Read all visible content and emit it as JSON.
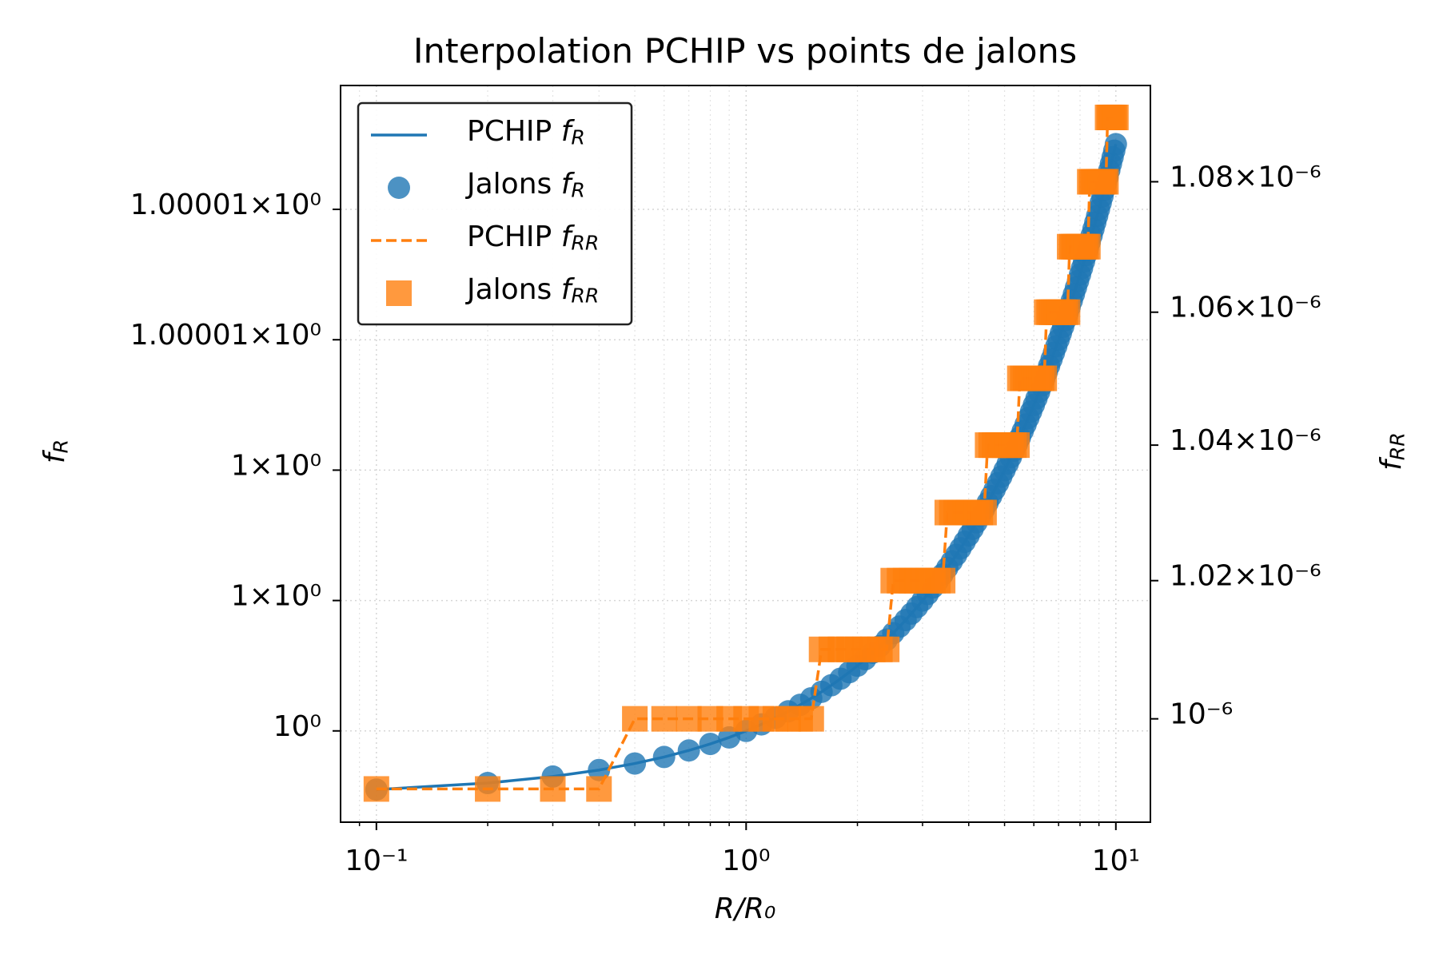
{
  "chart_data": {
    "type": "line",
    "title": "Interpolation PCHIP vs points de jalons",
    "xlabel": "R/R₀",
    "ylabel": "fR",
    "y2label": "fRR",
    "ycolor": "#1f77b4",
    "y2color": "#ff7f0e",
    "xscale": "log",
    "yscale": "log",
    "y2scale": "log",
    "grid": true,
    "legend": "upper left",
    "xlim": [
      0.08,
      12.4
    ],
    "ylim": [
      0.9999986,
      1.0000099
    ],
    "y2lim": [
      9.853e-07,
      1.095e-06
    ],
    "xticks": [
      {
        "value": 0.1,
        "label": "10⁻¹"
      },
      {
        "value": 1,
        "label": "10⁰"
      },
      {
        "value": 10,
        "label": "10¹"
      }
    ],
    "xminorticks": [
      0.09,
      0.2,
      0.3,
      0.4,
      0.5,
      0.6,
      0.7,
      0.8,
      0.9,
      2,
      3,
      4,
      5,
      6,
      7,
      8,
      9
    ],
    "yticks": [
      {
        "value": 1,
        "label": "10⁰"
      },
      {
        "value": 1.000002,
        "label": "1×10⁰"
      },
      {
        "value": 1.000004,
        "label": "1×10⁰"
      },
      {
        "value": 1.000006,
        "label": "1.00001×10⁰"
      },
      {
        "value": 1.000008,
        "label": "1.00001×10⁰"
      }
    ],
    "y2ticks": [
      {
        "value": 1e-06,
        "label": "10⁻⁶"
      },
      {
        "value": 1.02e-06,
        "label": "1.02×10⁻⁶"
      },
      {
        "value": 1.04e-06,
        "label": "1.04×10⁻⁶"
      },
      {
        "value": 1.06e-06,
        "label": "1.06×10⁻⁶"
      },
      {
        "value": 1.08e-06,
        "label": "1.08×10⁻⁶"
      }
    ],
    "x": [
      0.1,
      0.2,
      0.3,
      0.4,
      0.5,
      0.6,
      0.7,
      0.8,
      0.9,
      1,
      1.1,
      1.2,
      1.3,
      1.4,
      1.5,
      1.6,
      1.7,
      1.8,
      1.9,
      2,
      2.1,
      2.2,
      2.3,
      2.4,
      2.5,
      2.6,
      2.7,
      2.8,
      2.9,
      3,
      3.1,
      3.2,
      3.3,
      3.4,
      3.5,
      3.6,
      3.7,
      3.8,
      3.9,
      4,
      4.1,
      4.2,
      4.3,
      4.4,
      4.5,
      4.6,
      4.7,
      4.8,
      4.9,
      5,
      5.1,
      5.2,
      5.3,
      5.4,
      5.5,
      5.6,
      5.7,
      5.8,
      5.9,
      6,
      6.1,
      6.2,
      6.3,
      6.4,
      6.5,
      6.6,
      6.7,
      6.8,
      6.9,
      7,
      7.1,
      7.2,
      7.3,
      7.4,
      7.5,
      7.6,
      7.7,
      7.8,
      7.9,
      8,
      8.1,
      8.2,
      8.3,
      8.4,
      8.5,
      8.6,
      8.7,
      8.8,
      8.9,
      9,
      9.1,
      9.2,
      9.3,
      9.4,
      9.5,
      9.6,
      9.7,
      9.8,
      9.9,
      10
    ],
    "series": [
      {
        "name": "PCHIP fR",
        "color": "#1f77b4",
        "kind": "line",
        "linestyle": "solid",
        "values": [
          0.9999991,
          0.9999992,
          0.9999993,
          0.9999994,
          0.9999995,
          0.9999996,
          0.9999997,
          0.9999998,
          0.9999999,
          1,
          1.0000001,
          1.0000002,
          1.0000003,
          1.0000004,
          1.0000005,
          1.0000006,
          1.0000007,
          1.0000008,
          1.0000009,
          1.000001,
          1.0000011,
          1.0000012,
          1.0000013,
          1.0000014,
          1.0000015,
          1.0000016,
          1.0000017,
          1.0000018,
          1.0000019,
          1.000002,
          1.0000021,
          1.0000022,
          1.0000023,
          1.0000024,
          1.0000025,
          1.0000026,
          1.0000027,
          1.0000028,
          1.0000029,
          1.000003,
          1.0000031,
          1.0000032,
          1.0000033,
          1.0000034,
          1.0000035,
          1.0000036,
          1.0000037,
          1.0000038,
          1.0000039,
          1.000004,
          1.0000041,
          1.0000042,
          1.0000043,
          1.0000044,
          1.0000045,
          1.0000046,
          1.0000047,
          1.0000048,
          1.0000049,
          1.000005,
          1.0000051,
          1.0000052,
          1.0000053,
          1.0000054,
          1.0000055,
          1.0000056,
          1.0000057,
          1.0000058,
          1.0000059,
          1.000006,
          1.0000061,
          1.0000062,
          1.0000063,
          1.0000064,
          1.0000065,
          1.0000066,
          1.0000067,
          1.0000068,
          1.0000069,
          1.000007,
          1.0000071,
          1.0000072,
          1.0000073,
          1.0000074,
          1.0000075,
          1.0000076,
          1.0000077,
          1.0000078,
          1.0000079,
          1.000008,
          1.0000081,
          1.0000082,
          1.0000083,
          1.0000084,
          1.0000085,
          1.0000086,
          1.0000087,
          1.0000088,
          1.0000089,
          1.000009
        ]
      },
      {
        "name": "Jalons fR",
        "color": "#1f77b4",
        "kind": "scatter",
        "marker": "circle",
        "values": [
          0.9999991,
          0.9999992,
          0.9999993,
          0.9999994,
          0.9999995,
          0.9999996,
          0.9999997,
          0.9999998,
          0.9999999,
          1,
          1.0000001,
          1.0000002,
          1.0000003,
          1.0000004,
          1.0000005,
          1.0000006,
          1.0000007,
          1.0000008,
          1.0000009,
          1.000001,
          1.0000011,
          1.0000012,
          1.0000013,
          1.0000014,
          1.0000015,
          1.0000016,
          1.0000017,
          1.0000018,
          1.0000019,
          1.000002,
          1.0000021,
          1.0000022,
          1.0000023,
          1.0000024,
          1.0000025,
          1.0000026,
          1.0000027,
          1.0000028,
          1.0000029,
          1.000003,
          1.0000031,
          1.0000032,
          1.0000033,
          1.0000034,
          1.0000035,
          1.0000036,
          1.0000037,
          1.0000038,
          1.0000039,
          1.000004,
          1.0000041,
          1.0000042,
          1.0000043,
          1.0000044,
          1.0000045,
          1.0000046,
          1.0000047,
          1.0000048,
          1.0000049,
          1.000005,
          1.0000051,
          1.0000052,
          1.0000053,
          1.0000054,
          1.0000055,
          1.0000056,
          1.0000057,
          1.0000058,
          1.0000059,
          1.000006,
          1.0000061,
          1.0000062,
          1.0000063,
          1.0000064,
          1.0000065,
          1.0000066,
          1.0000067,
          1.0000068,
          1.0000069,
          1.000007,
          1.0000071,
          1.0000072,
          1.0000073,
          1.0000074,
          1.0000075,
          1.0000076,
          1.0000077,
          1.0000078,
          1.0000079,
          1.000008,
          1.0000081,
          1.0000082,
          1.0000083,
          1.0000084,
          1.0000085,
          1.0000086,
          1.0000087,
          1.0000088,
          1.0000089,
          1.000009
        ]
      },
      {
        "name": "PCHIP fRR",
        "color": "#ff7f0e",
        "kind": "line",
        "linestyle": "dashed",
        "axis": "y2",
        "values": [
          9.9e-07,
          9.9e-07,
          9.9e-07,
          9.9e-07,
          1e-06,
          1e-06,
          1e-06,
          1e-06,
          1e-06,
          1e-06,
          1e-06,
          1e-06,
          1e-06,
          1e-06,
          1e-06,
          1.01e-06,
          1.01e-06,
          1.01e-06,
          1.01e-06,
          1.01e-06,
          1.01e-06,
          1.01e-06,
          1.01e-06,
          1.01e-06,
          1.02e-06,
          1.02e-06,
          1.02e-06,
          1.02e-06,
          1.02e-06,
          1.02e-06,
          1.02e-06,
          1.02e-06,
          1.02e-06,
          1.02e-06,
          1.03e-06,
          1.03e-06,
          1.03e-06,
          1.03e-06,
          1.03e-06,
          1.03e-06,
          1.03e-06,
          1.03e-06,
          1.03e-06,
          1.03e-06,
          1.04e-06,
          1.04e-06,
          1.04e-06,
          1.04e-06,
          1.04e-06,
          1.04e-06,
          1.04e-06,
          1.04e-06,
          1.04e-06,
          1.04e-06,
          1.05e-06,
          1.05e-06,
          1.05e-06,
          1.05e-06,
          1.05e-06,
          1.05e-06,
          1.05e-06,
          1.05e-06,
          1.05e-06,
          1.05e-06,
          1.06e-06,
          1.06e-06,
          1.06e-06,
          1.06e-06,
          1.06e-06,
          1.06e-06,
          1.06e-06,
          1.06e-06,
          1.06e-06,
          1.06e-06,
          1.07e-06,
          1.07e-06,
          1.07e-06,
          1.07e-06,
          1.07e-06,
          1.07e-06,
          1.07e-06,
          1.07e-06,
          1.07e-06,
          1.07e-06,
          1.08e-06,
          1.08e-06,
          1.08e-06,
          1.08e-06,
          1.08e-06,
          1.08e-06,
          1.08e-06,
          1.08e-06,
          1.08e-06,
          1.08e-06,
          1.09e-06,
          1.09e-06,
          1.09e-06,
          1.09e-06,
          1.09e-06,
          1.09e-06
        ]
      },
      {
        "name": "Jalons fRR",
        "color": "#ff7f0e",
        "kind": "scatter",
        "marker": "square",
        "axis": "y2",
        "values": [
          9.9e-07,
          9.9e-07,
          9.9e-07,
          9.9e-07,
          1e-06,
          1e-06,
          1e-06,
          1e-06,
          1e-06,
          1e-06,
          1e-06,
          1e-06,
          1e-06,
          1e-06,
          1e-06,
          1.01e-06,
          1.01e-06,
          1.01e-06,
          1.01e-06,
          1.01e-06,
          1.01e-06,
          1.01e-06,
          1.01e-06,
          1.01e-06,
          1.02e-06,
          1.02e-06,
          1.02e-06,
          1.02e-06,
          1.02e-06,
          1.02e-06,
          1.02e-06,
          1.02e-06,
          1.02e-06,
          1.02e-06,
          1.03e-06,
          1.03e-06,
          1.03e-06,
          1.03e-06,
          1.03e-06,
          1.03e-06,
          1.03e-06,
          1.03e-06,
          1.03e-06,
          1.03e-06,
          1.04e-06,
          1.04e-06,
          1.04e-06,
          1.04e-06,
          1.04e-06,
          1.04e-06,
          1.04e-06,
          1.04e-06,
          1.04e-06,
          1.04e-06,
          1.05e-06,
          1.05e-06,
          1.05e-06,
          1.05e-06,
          1.05e-06,
          1.05e-06,
          1.05e-06,
          1.05e-06,
          1.05e-06,
          1.05e-06,
          1.06e-06,
          1.06e-06,
          1.06e-06,
          1.06e-06,
          1.06e-06,
          1.06e-06,
          1.06e-06,
          1.06e-06,
          1.06e-06,
          1.06e-06,
          1.07e-06,
          1.07e-06,
          1.07e-06,
          1.07e-06,
          1.07e-06,
          1.07e-06,
          1.07e-06,
          1.07e-06,
          1.07e-06,
          1.07e-06,
          1.08e-06,
          1.08e-06,
          1.08e-06,
          1.08e-06,
          1.08e-06,
          1.08e-06,
          1.08e-06,
          1.08e-06,
          1.08e-06,
          1.08e-06,
          1.09e-06,
          1.09e-06,
          1.09e-06,
          1.09e-06,
          1.09e-06,
          1.09e-06
        ]
      }
    ]
  }
}
